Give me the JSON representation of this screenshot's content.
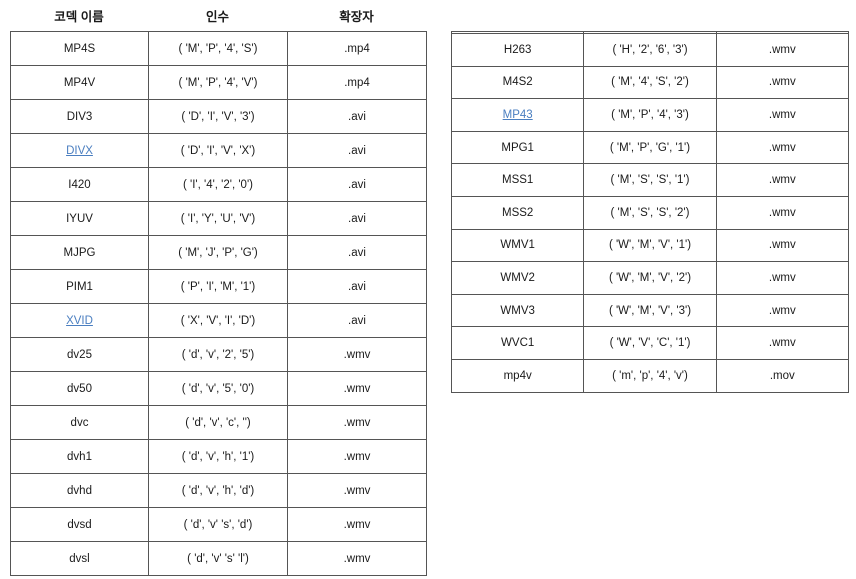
{
  "headers": {
    "codec_name": "코덱 이름",
    "argument": "인수",
    "extension": "확장자"
  },
  "left_table": [
    {
      "codec": "MP4S",
      "args": "( 'M', 'P', '4', 'S')",
      "ext": ".mp4",
      "link": false
    },
    {
      "codec": "MP4V",
      "args": "( 'M', 'P', '4', 'V')",
      "ext": ".mp4",
      "link": false
    },
    {
      "codec": "DIV3",
      "args": "( 'D', 'I', 'V', '3')",
      "ext": ".avi",
      "link": false
    },
    {
      "codec": "DIVX",
      "args": "( 'D', 'I', 'V', 'X')",
      "ext": ".avi",
      "link": true
    },
    {
      "codec": "I420",
      "args": "( 'I', '4', '2', '0')",
      "ext": ".avi",
      "link": false
    },
    {
      "codec": "IYUV",
      "args": "( 'I', 'Y', 'U', 'V')",
      "ext": ".avi",
      "link": false
    },
    {
      "codec": "MJPG",
      "args": "( 'M', 'J', 'P', 'G')",
      "ext": ".avi",
      "link": false
    },
    {
      "codec": "PIM1",
      "args": "( 'P', 'I', 'M', '1')",
      "ext": ".avi",
      "link": false
    },
    {
      "codec": "XVID",
      "args": "( 'X', 'V', 'I', 'D')",
      "ext": ".avi",
      "link": true
    },
    {
      "codec": "dv25",
      "args": "( 'd', 'v', '2', '5')",
      "ext": ".wmv",
      "link": false
    },
    {
      "codec": "dv50",
      "args": "( 'd', 'v', '5', '0')",
      "ext": ".wmv",
      "link": false
    },
    {
      "codec": "dvc",
      "args": "( 'd', 'v', 'c', '')",
      "ext": ".wmv",
      "link": false
    },
    {
      "codec": "dvh1",
      "args": "( 'd', 'v', 'h', '1')",
      "ext": ".wmv",
      "link": false
    },
    {
      "codec": "dvhd",
      "args": "( 'd', 'v', 'h', 'd')",
      "ext": ".wmv",
      "link": false
    },
    {
      "codec": "dvsd",
      "args": "( 'd', 'v' 's', 'd')",
      "ext": ".wmv",
      "link": false
    },
    {
      "codec": "dvsl",
      "args": "( 'd', 'v' 's' 'l')",
      "ext": ".wmv",
      "link": false
    }
  ],
  "right_table": [
    {
      "codec": "H263",
      "args": "( 'H', '2', '6', '3')",
      "ext": ".wmv",
      "link": false
    },
    {
      "codec": "M4S2",
      "args": "( 'M', '4', 'S', '2')",
      "ext": ".wmv",
      "link": false
    },
    {
      "codec": "MP43",
      "args": "( 'M', 'P', '4', '3')",
      "ext": ".wmv",
      "link": true
    },
    {
      "codec": "MPG1",
      "args": "( 'M', 'P', 'G', '1')",
      "ext": ".wmv",
      "link": false
    },
    {
      "codec": "MSS1",
      "args": "( 'M', 'S', 'S', '1')",
      "ext": ".wmv",
      "link": false
    },
    {
      "codec": "MSS2",
      "args": "( 'M', 'S', 'S', '2')",
      "ext": ".wmv",
      "link": false
    },
    {
      "codec": "WMV1",
      "args": "( 'W', 'M', 'V', '1')",
      "ext": ".wmv",
      "link": false
    },
    {
      "codec": "WMV2",
      "args": "( 'W', 'M', 'V', '2')",
      "ext": ".wmv",
      "link": false
    },
    {
      "codec": "WMV3",
      "args": "( 'W', 'M', 'V', '3')",
      "ext": ".wmv",
      "link": false
    },
    {
      "codec": "WVC1",
      "args": "( 'W', 'V', 'C', '1')",
      "ext": ".wmv",
      "link": false
    },
    {
      "codec": "mp4v",
      "args": "( 'm', 'p', '4', 'v')",
      "ext": ".mov",
      "link": false
    }
  ],
  "colors": {
    "link": "#4a7ec0",
    "border": "#555555",
    "text": "#1a1a1a"
  }
}
